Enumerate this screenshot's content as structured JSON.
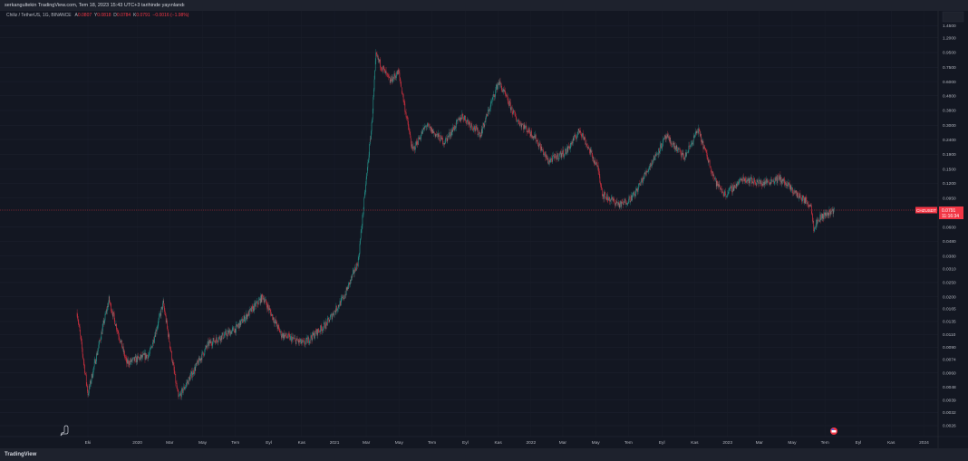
{
  "header": {
    "published": "serkangultekin TradingView.com, Tem 18, 2023 15:43 UTC+3 tarihinde yayınlandı"
  },
  "legend": {
    "symbol": "Chiliz / TetherUS, 1G, BINANCE",
    "open_label": "A",
    "open": "0.0807",
    "high_label": "Y",
    "high": "0.0818",
    "low_label": "D",
    "low": "0.0784",
    "close_label": "K",
    "close": "0.0791",
    "change": "−0.0016 (−1.98%)"
  },
  "footer": {
    "logo": "TradingView"
  },
  "price_tag": {
    "ticker": "CHZUSDT",
    "price": "0.0791",
    "countdown": "11:16:34"
  },
  "colors": {
    "up": "#26a69a",
    "down": "#f23645",
    "background": "#131722"
  },
  "chart_data": {
    "type": "candlestick",
    "scale": "log",
    "grid": true,
    "ylim": [
      0.0026,
      1.45
    ],
    "y_ticks": [
      "1.4500",
      "1.2000",
      "0.9500",
      "0.7500",
      "0.6000",
      "0.4800",
      "0.3800",
      "0.3000",
      "0.2400",
      "0.1900",
      "0.1500",
      "0.1200",
      "0.0950",
      "0.0600",
      "0.0480",
      "0.0380",
      "0.0310",
      "0.0250",
      "0.0200",
      "0.0165",
      "0.0135",
      "0.0110",
      "0.0090",
      "0.0074",
      "0.0060",
      "0.0048",
      "0.0039",
      "0.0032",
      "0.0026"
    ],
    "x_ticks": [
      {
        "label": "Eki",
        "date": "2019-10-01"
      },
      {
        "label": "2020",
        "date": "2020-01-01"
      },
      {
        "label": "Mar",
        "date": "2020-03-01"
      },
      {
        "label": "May",
        "date": "2020-05-01"
      },
      {
        "label": "Tem",
        "date": "2020-07-01"
      },
      {
        "label": "Eyl",
        "date": "2020-09-01"
      },
      {
        "label": "Kas",
        "date": "2020-11-01"
      },
      {
        "label": "2021",
        "date": "2021-01-01"
      },
      {
        "label": "Mar",
        "date": "2021-03-01"
      },
      {
        "label": "May",
        "date": "2021-05-01"
      },
      {
        "label": "Tem",
        "date": "2021-07-01"
      },
      {
        "label": "Eyl",
        "date": "2021-09-01"
      },
      {
        "label": "Kas",
        "date": "2021-11-01"
      },
      {
        "label": "2022",
        "date": "2022-01-01"
      },
      {
        "label": "Mar",
        "date": "2022-03-01"
      },
      {
        "label": "May",
        "date": "2022-05-01"
      },
      {
        "label": "Tem",
        "date": "2022-07-01"
      },
      {
        "label": "Eyl",
        "date": "2022-09-01"
      },
      {
        "label": "Kas",
        "date": "2022-11-01"
      },
      {
        "label": "2023",
        "date": "2023-01-01"
      },
      {
        "label": "Mar",
        "date": "2023-03-01"
      },
      {
        "label": "May",
        "date": "2023-05-01"
      },
      {
        "label": "Tem",
        "date": "2023-07-01"
      },
      {
        "label": "Eyl",
        "date": "2023-09-01"
      },
      {
        "label": "Kas",
        "date": "2023-11-01"
      },
      {
        "label": "2024",
        "date": "2024-01-01"
      }
    ],
    "x_range": [
      "2019-08-20",
      "2024-01-25"
    ],
    "price_path": [
      [
        "2019-09-11",
        0.0155
      ],
      [
        "2019-10-01",
        0.0043
      ],
      [
        "2019-11-09",
        0.019
      ],
      [
        "2019-12-12",
        0.007
      ],
      [
        "2020-01-23",
        0.008
      ],
      [
        "2020-02-18",
        0.018
      ],
      [
        "2020-03-17",
        0.004
      ],
      [
        "2020-05-12",
        0.0095
      ],
      [
        "2020-07-01",
        0.012
      ],
      [
        "2020-08-21",
        0.02
      ],
      [
        "2020-09-24",
        0.011
      ],
      [
        "2020-11-05",
        0.0095
      ],
      [
        "2020-12-17",
        0.013
      ],
      [
        "2021-01-19",
        0.02
      ],
      [
        "2021-02-14",
        0.035
      ],
      [
        "2021-03-11",
        0.3
      ],
      [
        "2021-03-19",
        0.9
      ],
      [
        "2021-04-14",
        0.6
      ],
      [
        "2021-04-30",
        0.7
      ],
      [
        "2021-05-26",
        0.2
      ],
      [
        "2021-06-20",
        0.3
      ],
      [
        "2021-07-24",
        0.23
      ],
      [
        "2021-08-26",
        0.35
      ],
      [
        "2021-09-29",
        0.26
      ],
      [
        "2021-11-02",
        0.6
      ],
      [
        "2021-12-05",
        0.33
      ],
      [
        "2022-01-08",
        0.25
      ],
      [
        "2022-02-02",
        0.17
      ],
      [
        "2022-03-08",
        0.2
      ],
      [
        "2022-04-02",
        0.28
      ],
      [
        "2022-05-06",
        0.15
      ],
      [
        "2022-05-14",
        0.1
      ],
      [
        "2022-06-17",
        0.085
      ],
      [
        "2022-07-12",
        0.1
      ],
      [
        "2022-08-06",
        0.15
      ],
      [
        "2022-09-09",
        0.25
      ],
      [
        "2022-10-13",
        0.18
      ],
      [
        "2022-11-07",
        0.28
      ],
      [
        "2022-12-11",
        0.12
      ],
      [
        "2022-12-28",
        0.1
      ],
      [
        "2023-01-30",
        0.13
      ],
      [
        "2023-03-05",
        0.12
      ],
      [
        "2023-04-08",
        0.13
      ],
      [
        "2023-05-11",
        0.1
      ],
      [
        "2023-06-05",
        0.085
      ],
      [
        "2023-06-10",
        0.06
      ],
      [
        "2023-06-22",
        0.07
      ],
      [
        "2023-07-18",
        0.0791
      ]
    ]
  }
}
